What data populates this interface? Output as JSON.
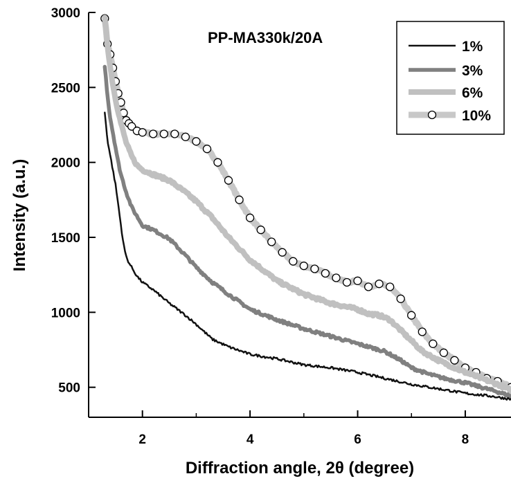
{
  "chart_data": {
    "type": "line",
    "title": "PP-MA330k/20A",
    "xlabel": "Diffraction angle, 2θ (degree)",
    "ylabel": "Intensity (a.u.)",
    "xlim": [
      1.0,
      8.85
    ],
    "ylim": [
      300,
      3000
    ],
    "xticks": [
      2,
      4,
      6,
      8
    ],
    "yticks": [
      500,
      1000,
      1500,
      2000,
      2500,
      3000
    ],
    "legend_position": "top-right",
    "grid": false,
    "series": [
      {
        "name": "1%",
        "color": "#111111",
        "style": "line-thin",
        "x": [
          1.3,
          1.35,
          1.4,
          1.45,
          1.5,
          1.55,
          1.6,
          1.65,
          1.7,
          1.75,
          1.8,
          1.9,
          2.0,
          2.2,
          2.5,
          2.8,
          3.0,
          3.3,
          3.6,
          4.0,
          4.5,
          5.0,
          5.5,
          6.0,
          6.5,
          7.0,
          7.5,
          8.0,
          8.5,
          8.85
        ],
        "y": [
          2330,
          2150,
          2050,
          1950,
          1850,
          1720,
          1580,
          1450,
          1370,
          1330,
          1300,
          1240,
          1200,
          1150,
          1060,
          980,
          920,
          820,
          770,
          720,
          690,
          650,
          630,
          600,
          560,
          520,
          490,
          460,
          440,
          420
        ]
      },
      {
        "name": "3%",
        "color": "#808080",
        "style": "line-medium",
        "x": [
          1.3,
          1.35,
          1.4,
          1.45,
          1.5,
          1.55,
          1.6,
          1.7,
          1.8,
          1.9,
          2.0,
          2.2,
          2.5,
          2.8,
          3.0,
          3.3,
          3.6,
          4.0,
          4.5,
          5.0,
          5.5,
          6.0,
          6.2,
          6.5,
          6.8,
          7.0,
          7.3,
          7.6,
          8.0,
          8.3,
          8.6,
          8.85
        ],
        "y": [
          2640,
          2450,
          2300,
          2200,
          2100,
          2000,
          1920,
          1800,
          1700,
          1640,
          1580,
          1550,
          1490,
          1380,
          1300,
          1200,
          1120,
          1020,
          950,
          890,
          840,
          790,
          770,
          740,
          680,
          630,
          590,
          560,
          530,
          500,
          470,
          440
        ]
      },
      {
        "name": "6%",
        "color": "#c0c0c0",
        "style": "line-thick",
        "x": [
          1.3,
          1.35,
          1.4,
          1.45,
          1.5,
          1.6,
          1.7,
          1.8,
          1.9,
          2.0,
          2.2,
          2.5,
          2.8,
          3.0,
          3.3,
          3.6,
          4.0,
          4.5,
          5.0,
          5.5,
          6.0,
          6.2,
          6.4,
          6.6,
          6.8,
          7.0,
          7.2,
          7.5,
          7.8,
          8.0,
          8.3,
          8.6,
          8.85
        ],
        "y": [
          2960,
          2780,
          2640,
          2520,
          2420,
          2260,
          2130,
          2040,
          1980,
          1950,
          1920,
          1880,
          1800,
          1740,
          1630,
          1500,
          1350,
          1210,
          1120,
          1060,
          1020,
          990,
          980,
          950,
          880,
          810,
          740,
          680,
          630,
          600,
          560,
          520,
          480
        ]
      },
      {
        "name": "10%",
        "color": "#c8c8c8",
        "style": "line-thick-markers",
        "x": [
          1.3,
          1.35,
          1.4,
          1.45,
          1.5,
          1.55,
          1.6,
          1.65,
          1.7,
          1.75,
          1.8,
          1.9,
          2.0,
          2.2,
          2.4,
          2.6,
          2.8,
          3.0,
          3.2,
          3.4,
          3.6,
          3.8,
          4.0,
          4.2,
          4.4,
          4.6,
          4.8,
          5.0,
          5.2,
          5.4,
          5.6,
          5.8,
          6.0,
          6.2,
          6.4,
          6.6,
          6.8,
          7.0,
          7.2,
          7.4,
          7.6,
          7.8,
          8.0,
          8.2,
          8.4,
          8.6,
          8.85
        ],
        "y": [
          2960,
          2790,
          2720,
          2630,
          2540,
          2460,
          2400,
          2330,
          2280,
          2260,
          2240,
          2210,
          2200,
          2190,
          2190,
          2190,
          2170,
          2140,
          2090,
          2000,
          1880,
          1750,
          1630,
          1550,
          1470,
          1400,
          1340,
          1310,
          1290,
          1260,
          1230,
          1200,
          1210,
          1170,
          1190,
          1170,
          1090,
          980,
          870,
          790,
          730,
          680,
          630,
          600,
          560,
          540,
          500
        ]
      }
    ]
  }
}
